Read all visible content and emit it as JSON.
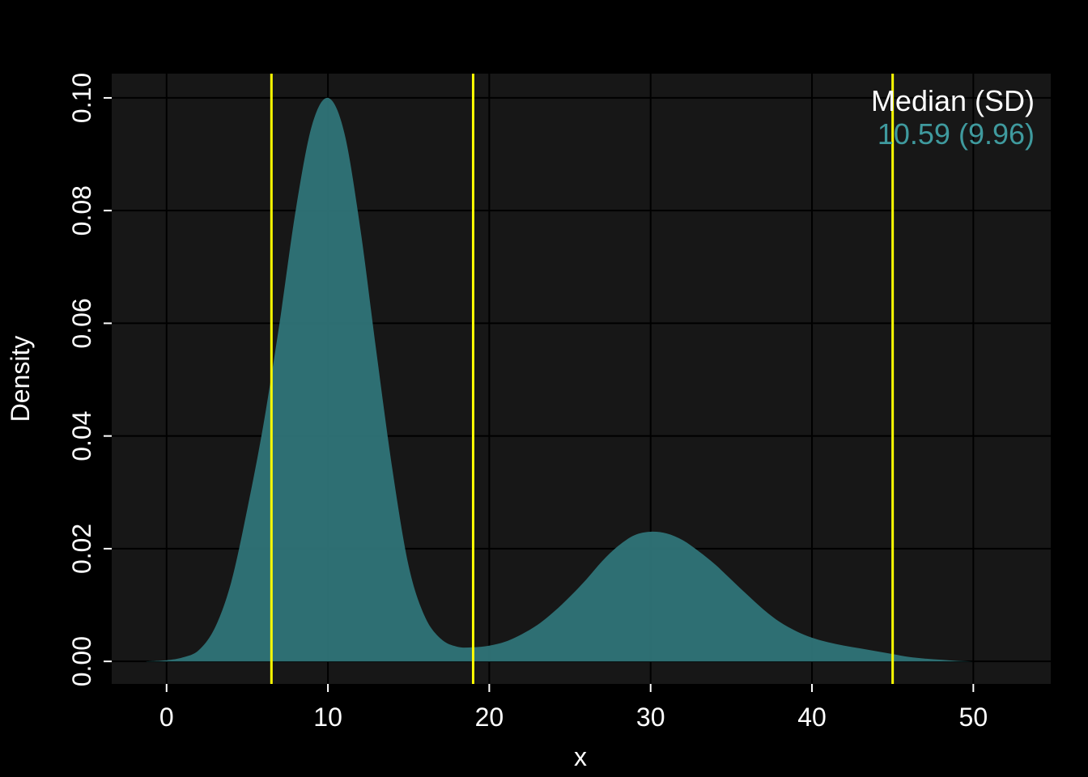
{
  "chart_data": {
    "type": "area",
    "title": "",
    "xlabel": "x",
    "ylabel": "Density",
    "xlim": [
      -3.4,
      54.8
    ],
    "ylim": [
      -0.004,
      0.1043
    ],
    "x_ticks": [
      0,
      10,
      20,
      30,
      40,
      50
    ],
    "y_ticks": [
      "0.00",
      "0.02",
      "0.04",
      "0.06",
      "0.08",
      "0.10"
    ],
    "grid": true,
    "series": [
      {
        "fill_color": "#2f7478",
        "x": [
          -1.3,
          0,
          1,
          2,
          3,
          4,
          5,
          6,
          7,
          8,
          9,
          10,
          11,
          12,
          13,
          14,
          15,
          16,
          17,
          18,
          19,
          20,
          21,
          22,
          23,
          24,
          25,
          26,
          27,
          28,
          29,
          30,
          31,
          32,
          33,
          34,
          35,
          36,
          37,
          38,
          39,
          40,
          41,
          42,
          43,
          44,
          45,
          46,
          47,
          48,
          49,
          50,
          51,
          52
        ],
        "y": [
          0.0,
          0.0002,
          0.0007,
          0.002,
          0.006,
          0.014,
          0.027,
          0.042,
          0.06,
          0.08,
          0.095,
          0.1,
          0.094,
          0.077,
          0.055,
          0.034,
          0.017,
          0.008,
          0.004,
          0.0026,
          0.0025,
          0.0028,
          0.0035,
          0.0048,
          0.0065,
          0.0088,
          0.0115,
          0.0145,
          0.0178,
          0.0205,
          0.0224,
          0.023,
          0.0227,
          0.0215,
          0.0195,
          0.0172,
          0.0145,
          0.0118,
          0.0092,
          0.007,
          0.0054,
          0.0042,
          0.0034,
          0.0028,
          0.0023,
          0.0018,
          0.0013,
          0.0008,
          0.0005,
          0.0003,
          0.0001,
          0.0,
          0.0,
          0.0
        ]
      }
    ],
    "vlines": [
      6.5,
      19.0,
      45.0
    ],
    "vline_color": "#ffff00",
    "legend": {
      "position": "top-right",
      "header": "Median (SD)",
      "entry": "10.59 (9.96)",
      "header_color": "#ffffff",
      "entry_color": "#3f9a9e"
    }
  }
}
